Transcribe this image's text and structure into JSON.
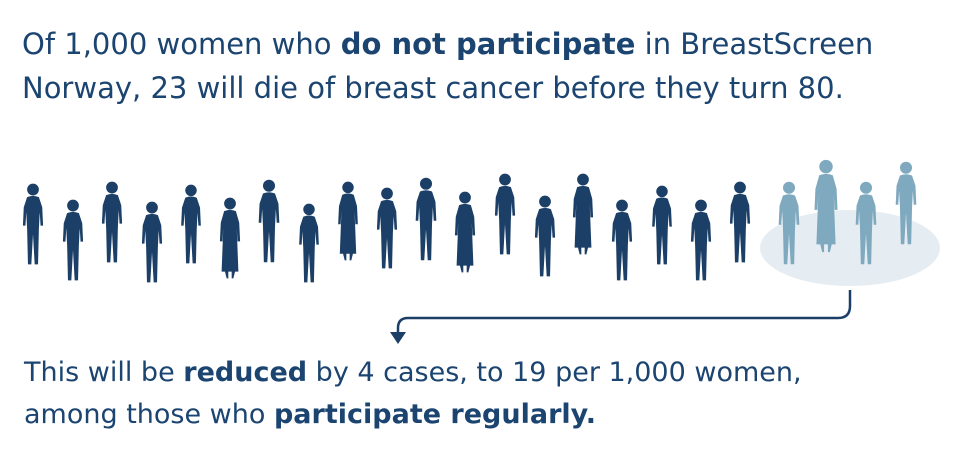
{
  "intro": {
    "lines": [
      [
        {
          "text": "Of 1,000 women who ",
          "bold": false
        },
        {
          "text": "do not participate",
          "bold": true
        },
        {
          "text": " in BreastScreen",
          "bold": false
        }
      ],
      [
        {
          "text": "Norway, 23 will die of breast cancer before they turn 80.",
          "bold": false
        }
      ]
    ]
  },
  "outro": {
    "lines": [
      [
        {
          "text": "This will be ",
          "bold": false
        },
        {
          "text": "reduced",
          "bold": true
        },
        {
          "text": " by 4 cases, to 19 per 1,000 women,",
          "bold": false
        }
      ],
      [
        {
          "text": "among those who ",
          "bold": false
        },
        {
          "text": "participate regularly.",
          "bold": true
        }
      ]
    ]
  }
}
